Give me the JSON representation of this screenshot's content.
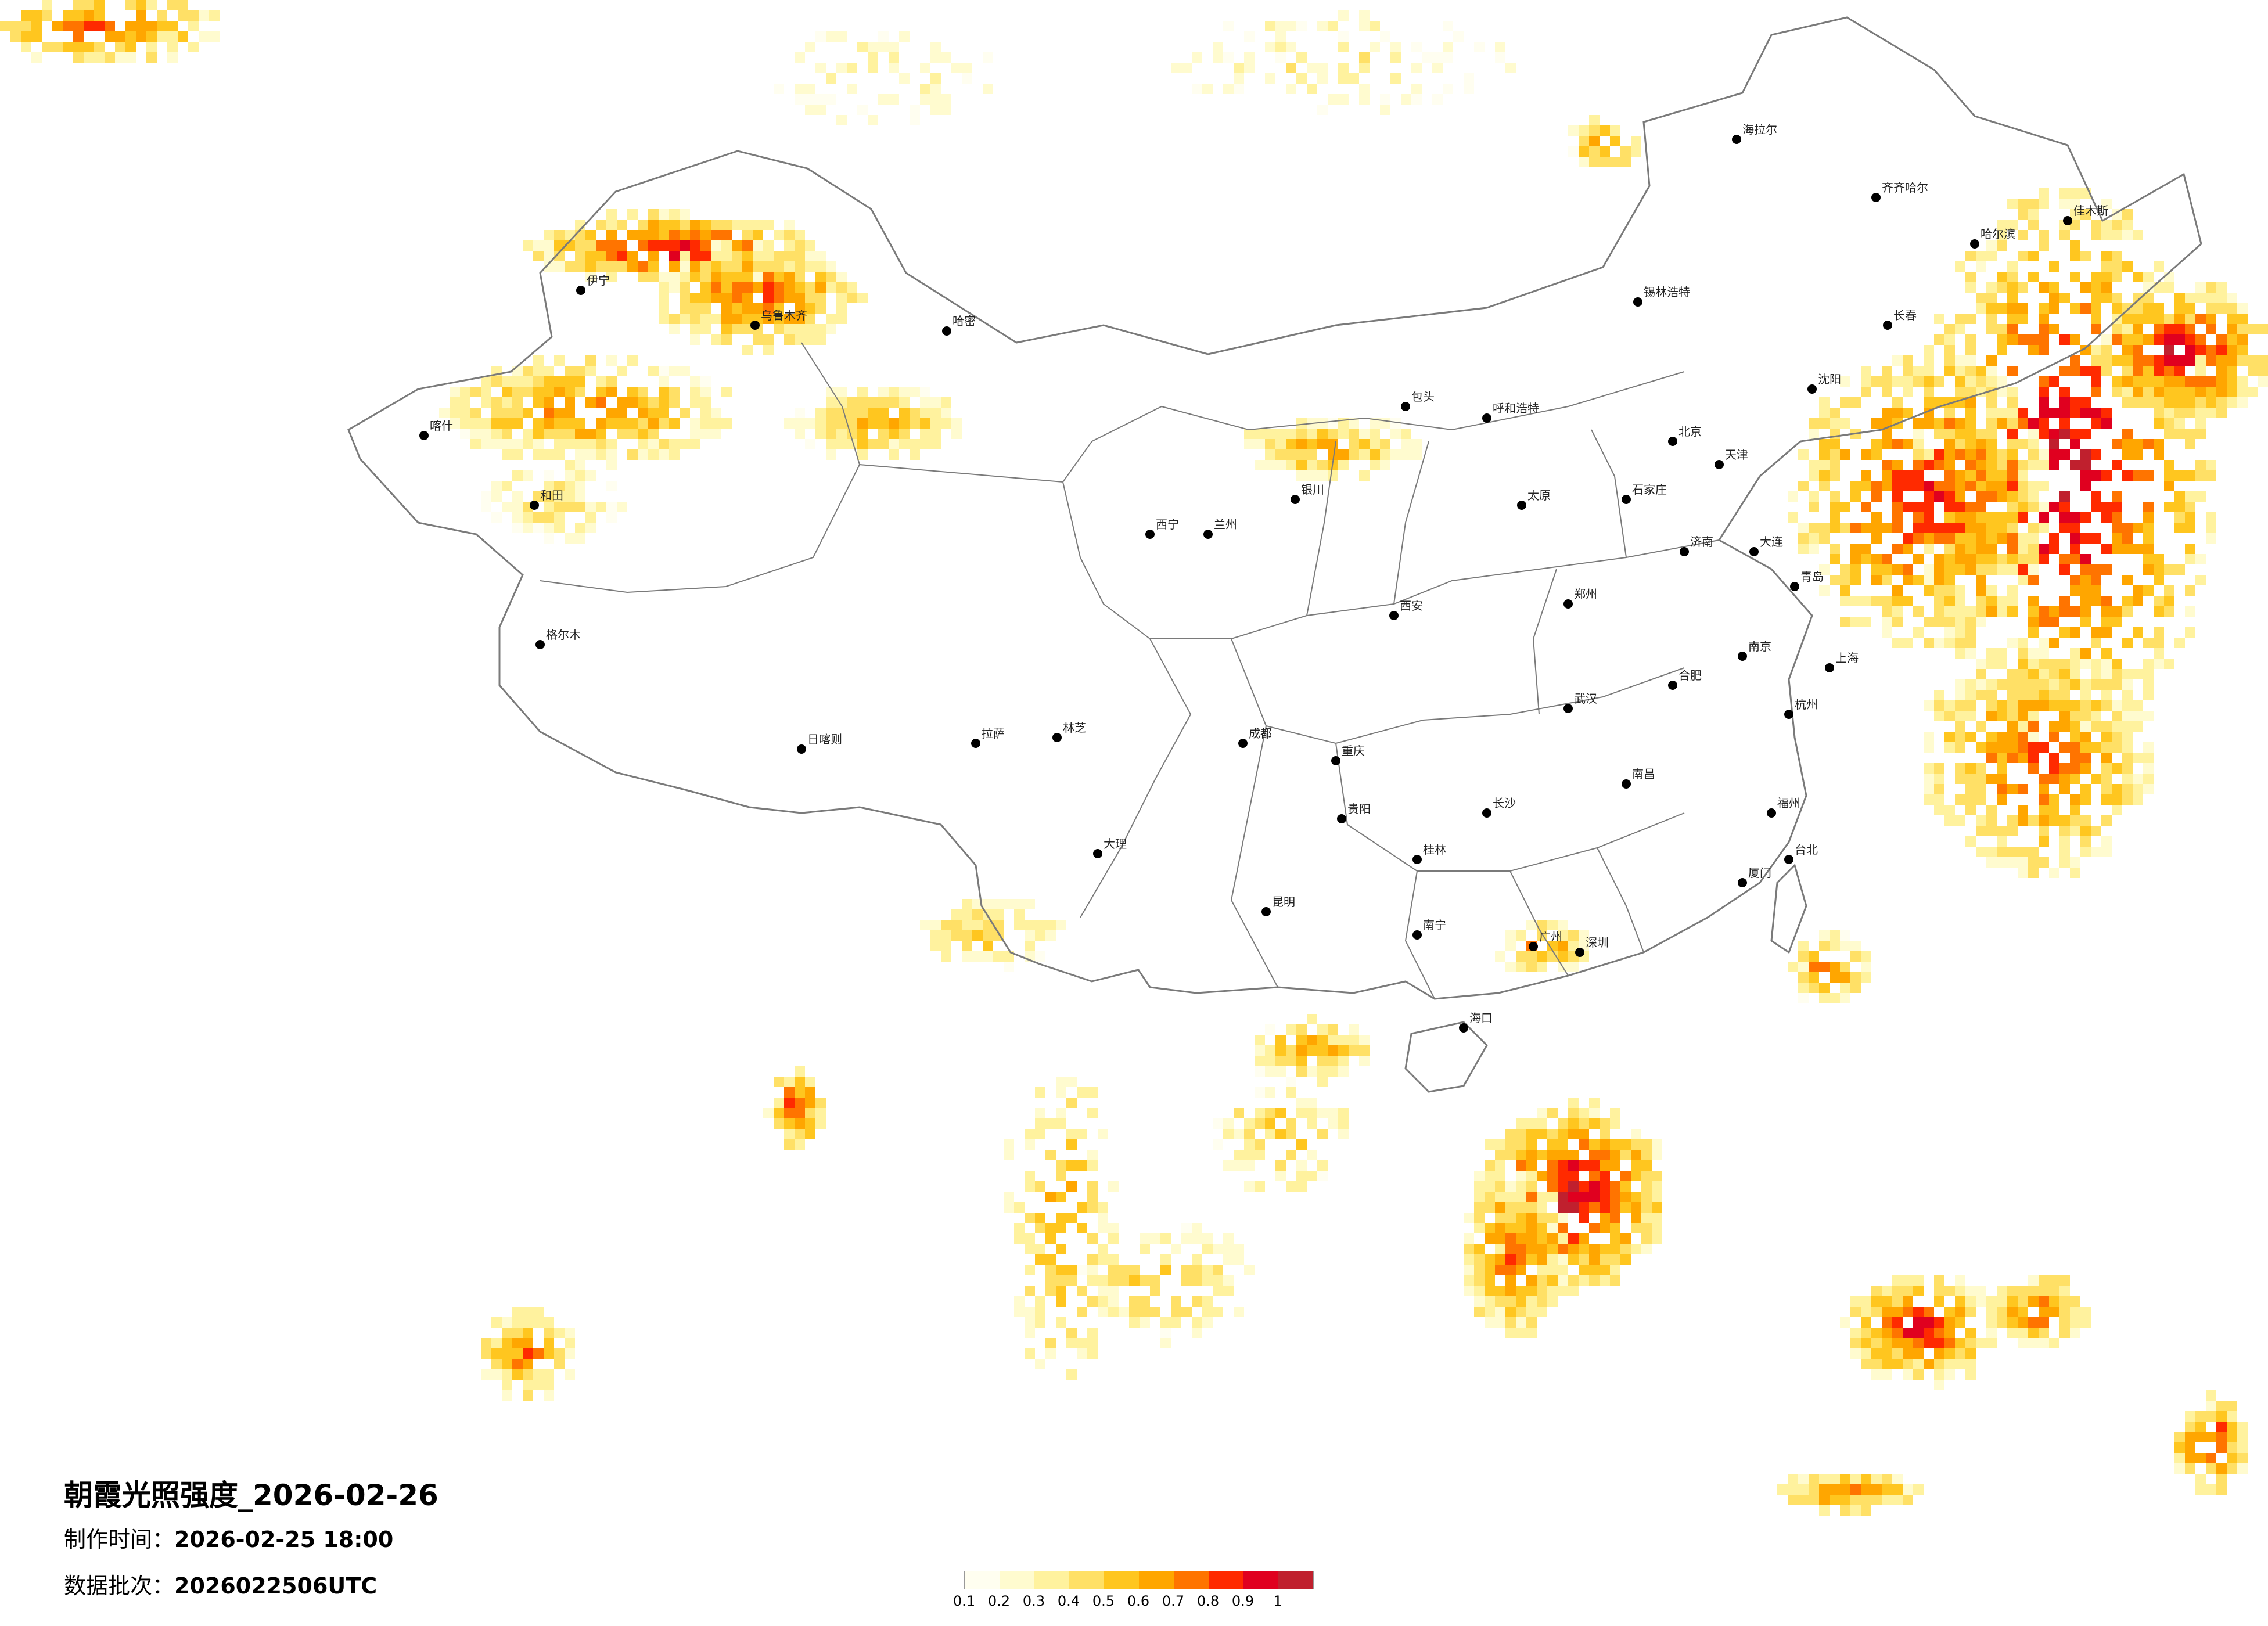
{
  "map": {
    "title": "朝霞光照强度_2026-02-26",
    "made_label": "制作时间：",
    "made_value": "2026-02-25 18:00",
    "batch_label": "数据批次：",
    "batch_value": "2026022506UTC"
  },
  "legend": {
    "colors": [
      "#fffef0",
      "#fffbcf",
      "#fff29e",
      "#ffe066",
      "#ffc61f",
      "#ffa600",
      "#ff7400",
      "#ff2a00",
      "#e0001f",
      "#c0202e"
    ],
    "labels": [
      "0.1",
      "0.2",
      "0.3",
      "0.4",
      "0.5",
      "0.6",
      "0.7",
      "0.8",
      "0.9",
      "1"
    ]
  },
  "cities": [
    {
      "name": "哈尔滨"
    },
    {
      "name": "长春"
    },
    {
      "name": "沈阳"
    },
    {
      "name": "北京"
    },
    {
      "name": "天津"
    },
    {
      "name": "石家庄"
    },
    {
      "name": "太原"
    },
    {
      "name": "呼和浩特"
    },
    {
      "name": "济南"
    },
    {
      "name": "郑州"
    },
    {
      "name": "西安"
    },
    {
      "name": "兰州"
    },
    {
      "name": "西宁"
    },
    {
      "name": "银川"
    },
    {
      "name": "乌鲁木齐"
    },
    {
      "name": "拉萨"
    },
    {
      "name": "成都"
    },
    {
      "name": "重庆"
    },
    {
      "name": "贵阳"
    },
    {
      "name": "昆明"
    },
    {
      "name": "南宁"
    },
    {
      "name": "广州"
    },
    {
      "name": "海口"
    },
    {
      "name": "长沙"
    },
    {
      "name": "武汉"
    },
    {
      "name": "南昌"
    },
    {
      "name": "合肥"
    },
    {
      "name": "南京"
    },
    {
      "name": "上海"
    },
    {
      "name": "杭州"
    },
    {
      "name": "福州"
    },
    {
      "name": "台北"
    },
    {
      "name": "喀什"
    },
    {
      "name": "和田"
    },
    {
      "name": "伊宁"
    },
    {
      "name": "哈密"
    },
    {
      "name": "格尔木"
    },
    {
      "name": "日喀则"
    },
    {
      "name": "林芝"
    },
    {
      "name": "大连"
    },
    {
      "name": "青岛"
    },
    {
      "name": "厦门"
    },
    {
      "name": "深圳"
    },
    {
      "name": "齐齐哈尔"
    },
    {
      "name": "海拉尔"
    },
    {
      "name": "佳木斯"
    },
    {
      "name": "锡林浩特"
    },
    {
      "name": "包头"
    },
    {
      "name": "大理"
    },
    {
      "name": "桂林"
    }
  ]
}
